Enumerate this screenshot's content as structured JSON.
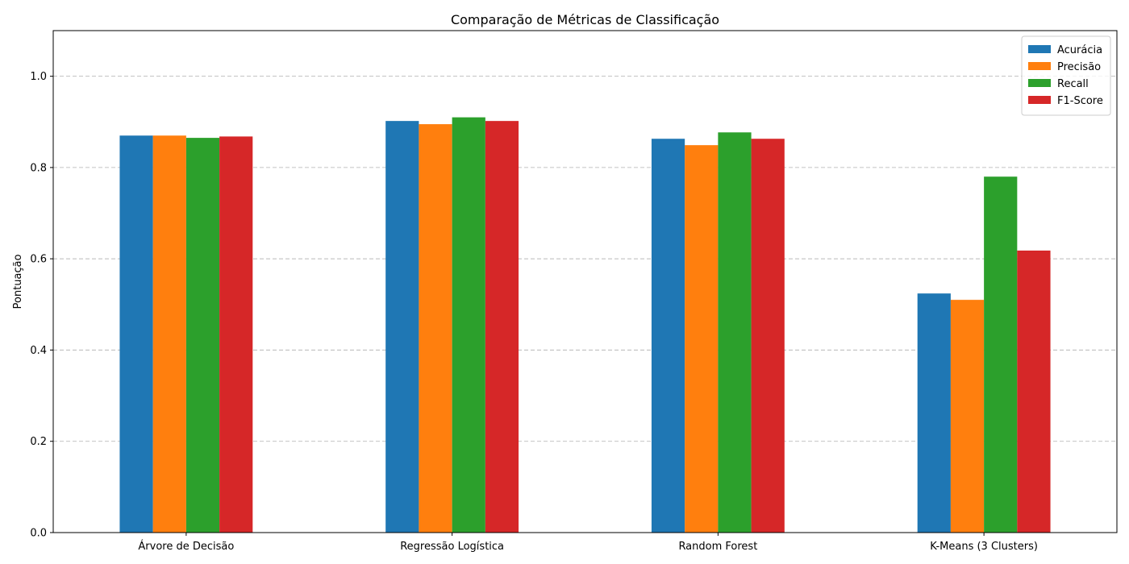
{
  "chart_data": {
    "type": "bar",
    "title": "Comparação de Métricas de Classificação",
    "xlabel": "",
    "ylabel": "Pontuação",
    "ylim": [
      0,
      1.1
    ],
    "yticks": [
      0.0,
      0.2,
      0.4,
      0.6,
      0.8,
      1.0
    ],
    "ytick_labels": [
      "0.0",
      "0.2",
      "0.4",
      "0.6",
      "0.8",
      "1.0"
    ],
    "grid": "y-dashed",
    "legend_position": "top-right",
    "categories": [
      "Árvore de Decisão",
      "Regressão Logística",
      "Random Forest",
      "K-Means (3 Clusters)"
    ],
    "series": [
      {
        "name": "Acurácia",
        "color": "#1f77b4",
        "values": [
          0.87,
          0.902,
          0.863,
          0.524
        ]
      },
      {
        "name": "Precisão",
        "color": "#ff7f0e",
        "values": [
          0.87,
          0.895,
          0.849,
          0.51
        ]
      },
      {
        "name": "Recall",
        "color": "#2ca02c",
        "values": [
          0.865,
          0.91,
          0.877,
          0.78
        ]
      },
      {
        "name": "F1-Score",
        "color": "#d62728",
        "values": [
          0.868,
          0.902,
          0.863,
          0.618
        ]
      }
    ]
  }
}
